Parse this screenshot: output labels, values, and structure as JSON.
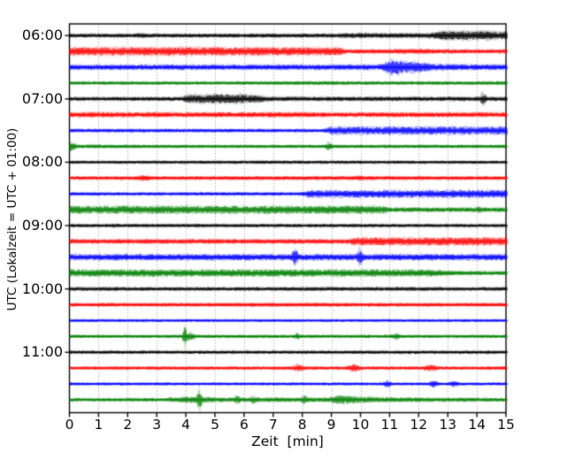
{
  "figure": {
    "background": "#ffffff",
    "frame_color": "#000000",
    "grid_color": "#7b7b7b"
  },
  "chart_data": {
    "type": "line",
    "variant": "helicorder-seismogram-drum-plot",
    "title": "",
    "xlabel": "Zeit  [min]",
    "ylabel": "UTC (Lokalzeit = UTC + 01:00)",
    "xlim": [
      0,
      15
    ],
    "x_tick_labels": [
      "0",
      "1",
      "2",
      "3",
      "4",
      "5",
      "6",
      "7",
      "8",
      "9",
      "10",
      "11",
      "12",
      "13",
      "14",
      "15"
    ],
    "y_tick_labels": [
      "06:00",
      "07:00",
      "08:00",
      "09:00",
      "10:00",
      "11:00"
    ],
    "grid": "vertical dotted gridline at every minute",
    "legend": "none",
    "color_cycle": [
      "#000000",
      "#ff0000",
      "#0000ff",
      "#008000"
    ],
    "traces_note": "24 traces, one per 15 minutes from 06:00 to 11:45 UTC; env = piecewise-linear amplitude envelope [minute, half-amplitude-px]; spikes = transient events [minute, extra-amplitude-px, half-width-min]",
    "traces": [
      {
        "start": "06:00",
        "color": "#000000",
        "env": [
          [
            0,
            1.6
          ],
          [
            2.2,
            1.6
          ],
          [
            2.4,
            2.3
          ],
          [
            2.7,
            1.6
          ],
          [
            9.2,
            1.7
          ],
          [
            9.5,
            2.1
          ],
          [
            11.5,
            2.0
          ],
          [
            12.4,
            2.1
          ],
          [
            12.7,
            3.6
          ],
          [
            14.4,
            3.7
          ],
          [
            14.7,
            3.1
          ],
          [
            15,
            3.2
          ]
        ],
        "spikes": []
      },
      {
        "start": "06:15",
        "color": "#ff0000",
        "env": [
          [
            0,
            3.4
          ],
          [
            4,
            3.5
          ],
          [
            9.3,
            3.3
          ],
          [
            9.5,
            1.7
          ],
          [
            11.0,
            1.8
          ],
          [
            11.3,
            2.1
          ],
          [
            12.4,
            2.0
          ],
          [
            12.7,
            1.7
          ],
          [
            15,
            1.7
          ]
        ],
        "spikes": []
      },
      {
        "start": "06:30",
        "color": "#0000ff",
        "env": [
          [
            0,
            2.1
          ],
          [
            10.55,
            2.2
          ],
          [
            10.75,
            2.8
          ],
          [
            11.0,
            5.5
          ],
          [
            11.25,
            6.3
          ],
          [
            11.55,
            4.6
          ],
          [
            11.75,
            4.6
          ],
          [
            12.1,
            4.0
          ],
          [
            12.4,
            2.9
          ],
          [
            13.0,
            2.5
          ],
          [
            15,
            2.2
          ]
        ],
        "spikes": []
      },
      {
        "start": "06:45",
        "color": "#008000",
        "env": [
          [
            0,
            1.4
          ],
          [
            5,
            1.3
          ],
          [
            8.8,
            1.6
          ],
          [
            11,
            1.4
          ],
          [
            15,
            1.5
          ]
        ],
        "spikes": []
      },
      {
        "start": "07:00",
        "color": "#000000",
        "env": [
          [
            0,
            1.6
          ],
          [
            3.85,
            1.7
          ],
          [
            4.05,
            3.4
          ],
          [
            4.5,
            3.7
          ],
          [
            5.9,
            3.7
          ],
          [
            6.5,
            3.0
          ],
          [
            6.9,
            1.9
          ],
          [
            9,
            1.8
          ],
          [
            15,
            1.8
          ]
        ],
        "spikes": [
          [
            14.2,
            4.3,
            0.13
          ]
        ]
      },
      {
        "start": "07:15",
        "color": "#ff0000",
        "env": [
          [
            0,
            2.2
          ],
          [
            5,
            2.1
          ],
          [
            8.2,
            2.2
          ],
          [
            8.5,
            1.9
          ],
          [
            12,
            2.0
          ],
          [
            15,
            2.0
          ]
        ],
        "spikes": []
      },
      {
        "start": "07:30",
        "color": "#0000ff",
        "env": [
          [
            0,
            1.5
          ],
          [
            8.75,
            1.5
          ],
          [
            8.95,
            3.2
          ],
          [
            12,
            3.3
          ],
          [
            15,
            3.2
          ]
        ],
        "spikes": []
      },
      {
        "start": "07:45",
        "color": "#008000",
        "env": [
          [
            0,
            4.2
          ],
          [
            0.25,
            1.6
          ],
          [
            3,
            1.3
          ],
          [
            15,
            1.4
          ]
        ],
        "spikes": [
          [
            8.9,
            2.6,
            0.15
          ]
        ]
      },
      {
        "start": "08:00",
        "color": "#000000",
        "env": [
          [
            0,
            1.3
          ],
          [
            6,
            1.4
          ],
          [
            15,
            1.3
          ]
        ],
        "spikes": []
      },
      {
        "start": "08:15",
        "color": "#ff0000",
        "env": [
          [
            0,
            1.5
          ],
          [
            2.2,
            1.5
          ],
          [
            2.5,
            2.4
          ],
          [
            2.9,
            1.5
          ],
          [
            9.7,
            1.6
          ],
          [
            9.95,
            2.0
          ],
          [
            10.2,
            1.6
          ],
          [
            15,
            1.5
          ]
        ],
        "spikes": []
      },
      {
        "start": "08:30",
        "color": "#0000ff",
        "env": [
          [
            0,
            1.4
          ],
          [
            7.95,
            1.4
          ],
          [
            8.2,
            3.0
          ],
          [
            12,
            3.1
          ],
          [
            15,
            3.1
          ]
        ],
        "spikes": []
      },
      {
        "start": "08:45",
        "color": "#008000",
        "env": [
          [
            0,
            3.2
          ],
          [
            10.7,
            3.2
          ],
          [
            11.05,
            1.9
          ],
          [
            13.8,
            1.9
          ],
          [
            14.05,
            2.6
          ],
          [
            14.3,
            1.9
          ],
          [
            15,
            1.9
          ]
        ],
        "spikes": []
      },
      {
        "start": "09:00",
        "color": "#000000",
        "env": [
          [
            0,
            1.4
          ],
          [
            1.4,
            1.4
          ],
          [
            1.55,
            1.8
          ],
          [
            1.7,
            1.4
          ],
          [
            4.2,
            1.4
          ],
          [
            4.35,
            1.8
          ],
          [
            4.5,
            1.4
          ],
          [
            15,
            1.4
          ]
        ],
        "spikes": []
      },
      {
        "start": "09:15",
        "color": "#ff0000",
        "env": [
          [
            0,
            1.9
          ],
          [
            9.55,
            1.9
          ],
          [
            9.8,
            3.2
          ],
          [
            13,
            3.3
          ],
          [
            15,
            3.3
          ]
        ],
        "spikes": []
      },
      {
        "start": "09:30",
        "color": "#0000ff",
        "env": [
          [
            0,
            2.5
          ],
          [
            15,
            2.5
          ]
        ],
        "spikes": [
          [
            7.74,
            5.0,
            0.13
          ],
          [
            9.97,
            5.8,
            0.13
          ]
        ]
      },
      {
        "start": "09:45",
        "color": "#008000",
        "env": [
          [
            0,
            2.9
          ],
          [
            12.4,
            2.9
          ],
          [
            13.1,
            1.8
          ],
          [
            15,
            1.6
          ]
        ],
        "spikes": []
      },
      {
        "start": "10:00",
        "color": "#000000",
        "env": [
          [
            0,
            1.6
          ],
          [
            3,
            1.5
          ],
          [
            9.5,
            1.6
          ],
          [
            15,
            1.5
          ]
        ],
        "spikes": []
      },
      {
        "start": "10:15",
        "color": "#ff0000",
        "env": [
          [
            0,
            1.5
          ],
          [
            7,
            1.6
          ],
          [
            15,
            1.5
          ]
        ],
        "spikes": []
      },
      {
        "start": "10:30",
        "color": "#0000ff",
        "env": [
          [
            0,
            1.2
          ],
          [
            15,
            1.2
          ]
        ],
        "spikes": []
      },
      {
        "start": "10:45",
        "color": "#008000",
        "env": [
          [
            0,
            1.3
          ],
          [
            15,
            1.3
          ]
        ],
        "spikes": [
          [
            3.95,
            6.3,
            0.1
          ],
          [
            4.12,
            2.2,
            0.25
          ],
          [
            7.8,
            1.7,
            0.15
          ],
          [
            11.2,
            1.7,
            0.2
          ]
        ]
      },
      {
        "start": "11:00",
        "color": "#000000",
        "env": [
          [
            0,
            1.4
          ],
          [
            15,
            1.4
          ]
        ],
        "spikes": []
      },
      {
        "start": "11:15",
        "color": "#ff0000",
        "env": [
          [
            0,
            1.4
          ],
          [
            15,
            1.4
          ]
        ],
        "spikes": [
          [
            7.85,
            1.7,
            0.3
          ],
          [
            9.77,
            1.9,
            0.3
          ],
          [
            12.4,
            1.5,
            0.3
          ]
        ]
      },
      {
        "start": "11:30",
        "color": "#0000ff",
        "env": [
          [
            0,
            1.2
          ],
          [
            15,
            1.2
          ]
        ],
        "spikes": [
          [
            10.9,
            1.6,
            0.2
          ],
          [
            12.5,
            1.9,
            0.2
          ],
          [
            13.2,
            1.4,
            0.2
          ]
        ]
      },
      {
        "start": "11:45",
        "color": "#008000",
        "env": [
          [
            0,
            1.5
          ],
          [
            3.3,
            1.5
          ],
          [
            3.45,
            2.1
          ],
          [
            3.65,
            1.6
          ],
          [
            3.95,
            2.7
          ],
          [
            4.3,
            2.5
          ],
          [
            4.7,
            2.3
          ],
          [
            5.1,
            1.9
          ],
          [
            5.5,
            1.8
          ],
          [
            8.9,
            1.9
          ],
          [
            9.25,
            3.6
          ],
          [
            9.55,
            3.2
          ],
          [
            10.1,
            2.5
          ],
          [
            10.7,
            2.1
          ],
          [
            11.6,
            1.9
          ],
          [
            13,
            1.7
          ],
          [
            15,
            1.6
          ]
        ],
        "spikes": [
          [
            4.45,
            8.3,
            0.1
          ],
          [
            5.75,
            1.7,
            0.15
          ],
          [
            6.3,
            1.7,
            0.15
          ],
          [
            8.05,
            1.9,
            0.15
          ]
        ]
      }
    ]
  }
}
